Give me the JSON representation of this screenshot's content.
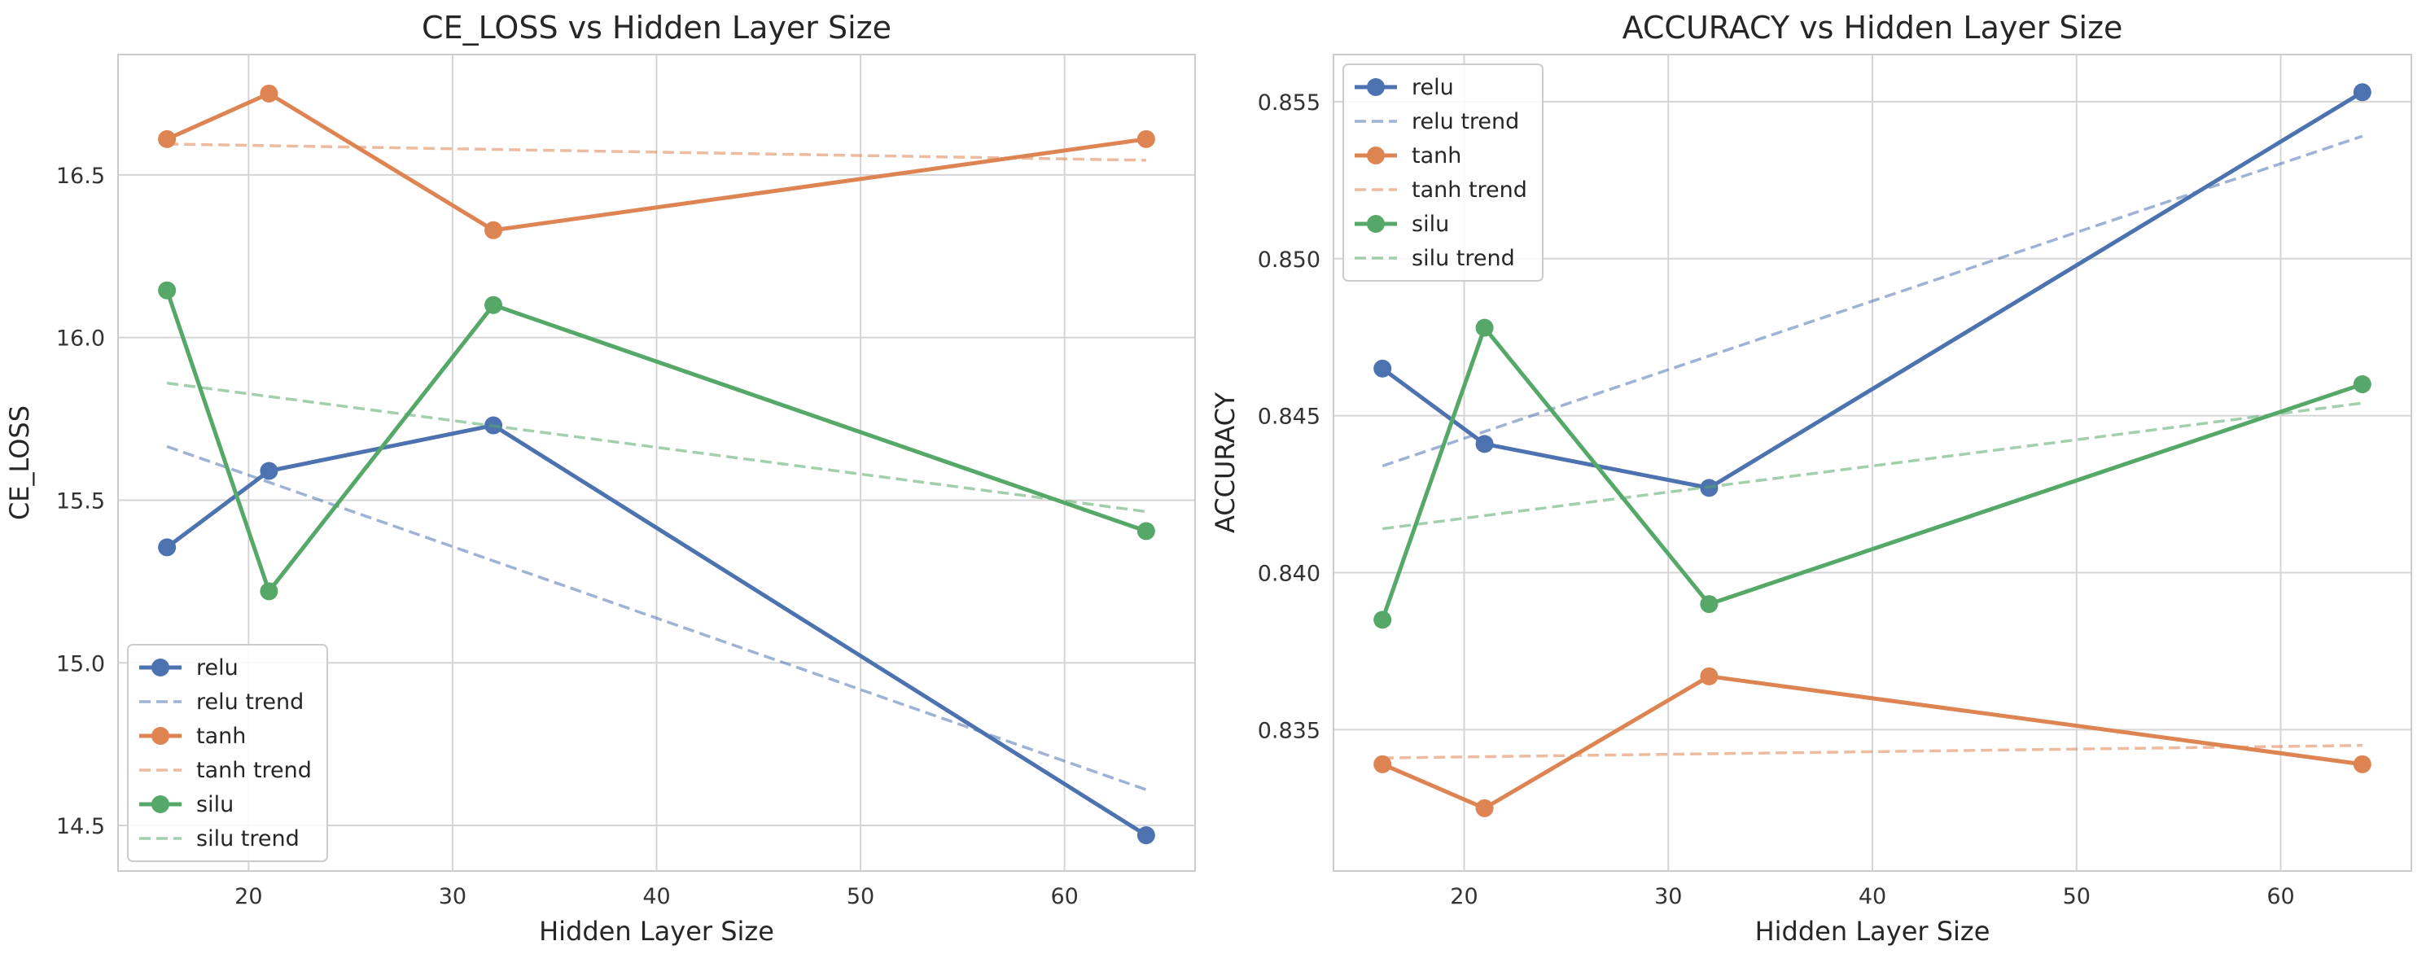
{
  "chart_data": [
    {
      "type": "line",
      "title": "CE_LOSS vs Hidden Layer Size",
      "xlabel": "Hidden Layer Size",
      "ylabel": "CE_LOSS",
      "xlim": [
        13.6,
        66.4
      ],
      "ylim": [
        14.36,
        16.87
      ],
      "xticks": [
        20,
        30,
        40,
        50,
        60
      ],
      "yticks": [
        14.5,
        15.0,
        15.5,
        16.0,
        16.5
      ],
      "ytick_labels": [
        "14.5",
        "15.0",
        "15.5",
        "16.0",
        "16.5"
      ],
      "grid": true,
      "legend_position": "lower-left",
      "x": [
        16,
        21,
        32,
        64
      ],
      "series": [
        {
          "name": "relu",
          "color": "#4c72b0",
          "values": [
            15.355,
            15.59,
            15.73,
            14.47
          ]
        },
        {
          "name": "relu trend",
          "color": "#4c72b0",
          "dashed": true,
          "x": [
            16,
            64
          ],
          "values": [
            15.665,
            14.61
          ]
        },
        {
          "name": "tanh",
          "color": "#dd8452",
          "values": [
            16.61,
            16.75,
            16.33,
            16.61
          ]
        },
        {
          "name": "tanh trend",
          "color": "#dd8452",
          "dashed": true,
          "x": [
            16,
            64
          ],
          "values": [
            16.595,
            16.545
          ]
        },
        {
          "name": "silu",
          "color": "#55a868",
          "values": [
            16.145,
            15.22,
            16.1,
            15.405
          ]
        },
        {
          "name": "silu trend",
          "color": "#55a868",
          "dashed": true,
          "x": [
            16,
            64
          ],
          "values": [
            15.86,
            15.465
          ]
        }
      ]
    },
    {
      "type": "line",
      "title": "ACCURACY vs Hidden Layer Size",
      "xlabel": "Hidden Layer Size",
      "ylabel": "ACCURACY",
      "xlim": [
        13.6,
        66.4
      ],
      "ylim": [
        0.8305,
        0.8565
      ],
      "xticks": [
        20,
        30,
        40,
        50,
        60
      ],
      "yticks": [
        0.835,
        0.84,
        0.845,
        0.85,
        0.855
      ],
      "ytick_labels": [
        "0.835",
        "0.840",
        "0.845",
        "0.850",
        "0.855"
      ],
      "grid": true,
      "legend_position": "upper-left",
      "x": [
        16,
        21,
        32,
        64
      ],
      "series": [
        {
          "name": "relu",
          "color": "#4c72b0",
          "values": [
            0.8465,
            0.8441,
            0.8427,
            0.8553
          ]
        },
        {
          "name": "relu trend",
          "color": "#4c72b0",
          "dashed": true,
          "x": [
            16,
            64
          ],
          "values": [
            0.8434,
            0.8539
          ]
        },
        {
          "name": "tanh",
          "color": "#dd8452",
          "values": [
            0.8339,
            0.8325,
            0.8367,
            0.8339
          ]
        },
        {
          "name": "tanh trend",
          "color": "#dd8452",
          "dashed": true,
          "x": [
            16,
            64
          ],
          "values": [
            0.8341,
            0.8345
          ]
        },
        {
          "name": "silu",
          "color": "#55a868",
          "values": [
            0.8385,
            0.8478,
            0.839,
            0.846
          ]
        },
        {
          "name": "silu trend",
          "color": "#55a868",
          "dashed": true,
          "x": [
            16,
            64
          ],
          "values": [
            0.8414,
            0.8454
          ]
        }
      ]
    }
  ]
}
